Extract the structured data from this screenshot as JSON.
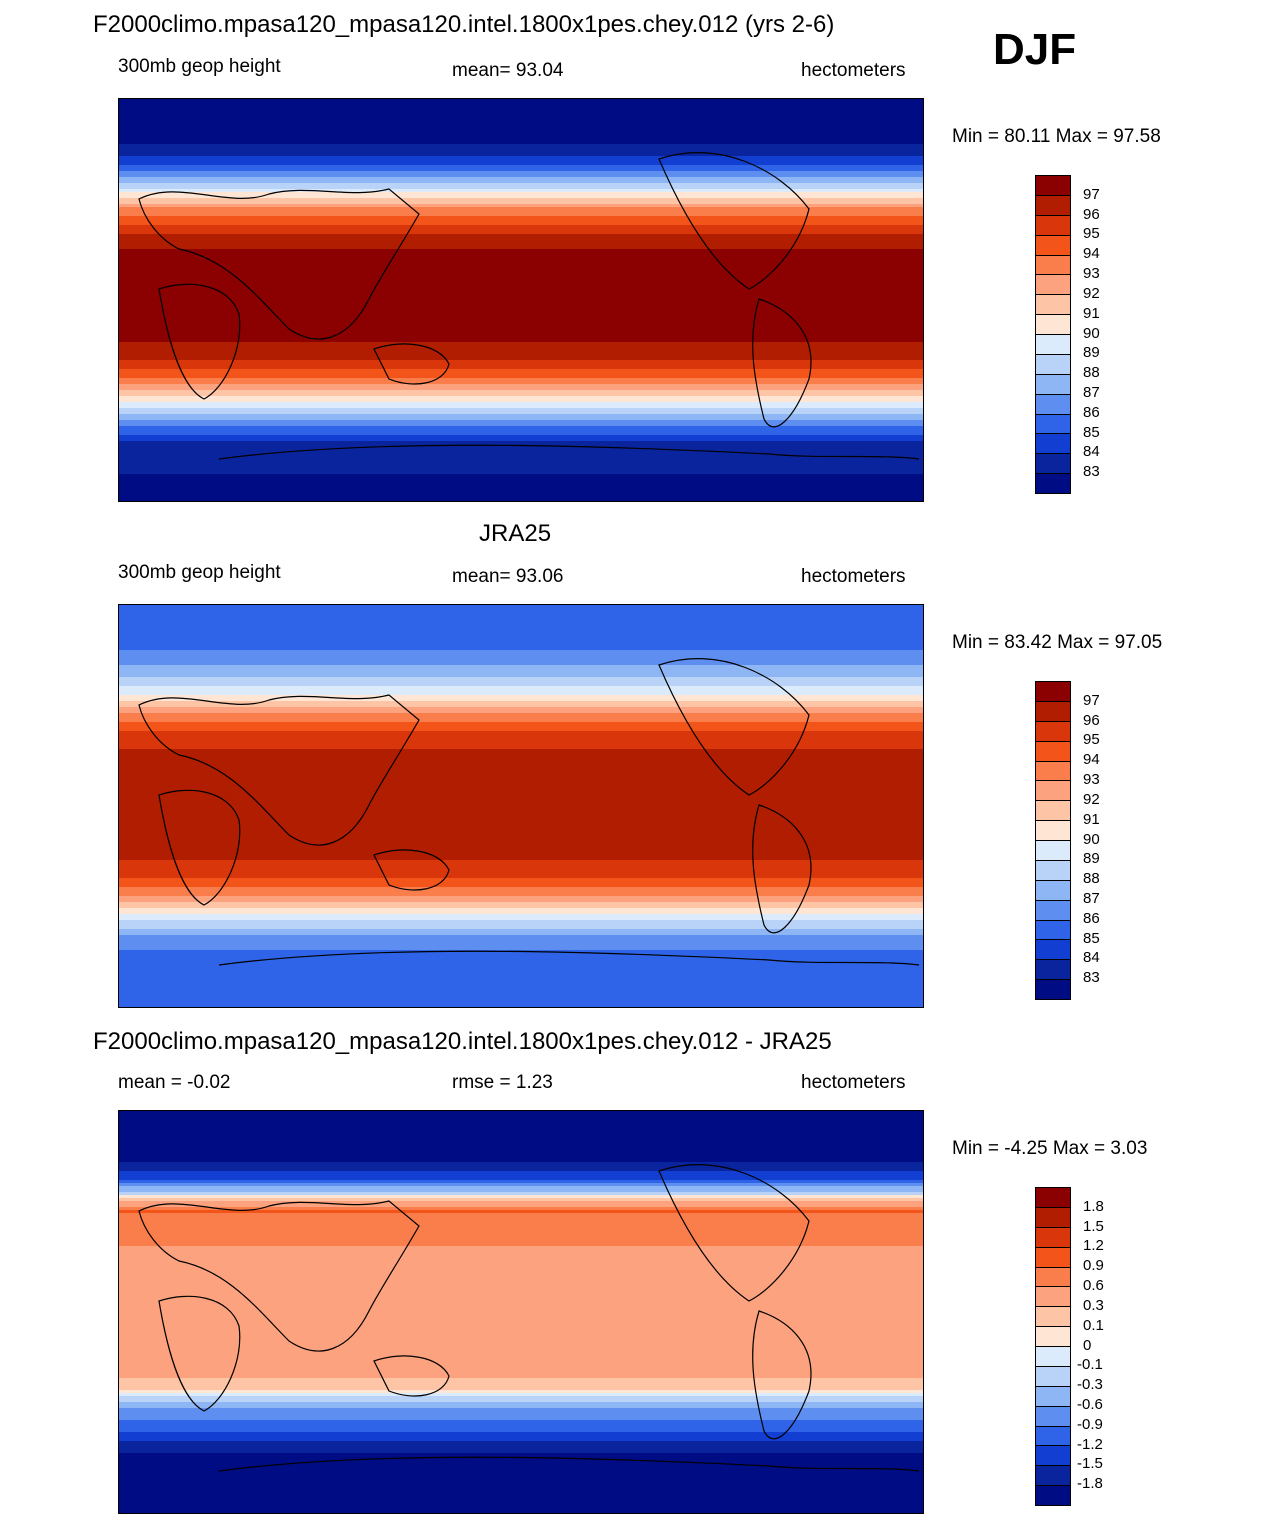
{
  "figure": {
    "season": "DJF"
  },
  "panels": [
    {
      "title": "F2000climo.mpasa120_mpasa120.intel.1800x1pes.chey.012 (yrs 2-6)",
      "left_label": "300mb geop height",
      "center_label": "mean=  93.04",
      "right_label": "hectometers",
      "minmax": "Min =  80.11 Max =  97.58"
    },
    {
      "title": "JRA25",
      "left_label": "300mb geop height",
      "center_label": "mean=  93.06",
      "right_label": "hectometers",
      "minmax": "Min =  83.42 Max =  97.05"
    },
    {
      "title": "F2000climo.mpasa120_mpasa120.intel.1800x1pes.chey.012 - JRA25",
      "left_label": "mean =  -0.02",
      "center_label": "rmse =   1.23",
      "right_label": "hectometers",
      "minmax": "Min =  -4.25 Max =   3.03"
    }
  ],
  "chart_data": [
    {
      "type": "heatmap",
      "title": "F2000climo.mpasa120_mpasa120.intel.1800x1pes.chey.012 (yrs 2-6)",
      "variable": "300mb geop height",
      "units": "hectometers",
      "mean": 93.04,
      "min": 80.11,
      "max": 97.58,
      "contour_levels": [
        97,
        96,
        95,
        94,
        93,
        92,
        91,
        90,
        89,
        88,
        87,
        86,
        85,
        84,
        83
      ],
      "colors": [
        "#8b0000",
        "#b11d00",
        "#d9360b",
        "#f2541a",
        "#f97e4c",
        "#fca27e",
        "#fdc4a6",
        "#fee5d4",
        "#dcebfb",
        "#b9d3f8",
        "#8fb6f4",
        "#5d8ef0",
        "#2f64e8",
        "#123fd1",
        "#0a249e",
        "#000c84"
      ],
      "lat_profile": [
        {
          "lat": 90,
          "value": 82
        },
        {
          "lat": 70,
          "value": 83
        },
        {
          "lat": 62,
          "value": 84.5
        },
        {
          "lat": 55,
          "value": 87
        },
        {
          "lat": 48,
          "value": 90
        },
        {
          "lat": 40,
          "value": 93.5
        },
        {
          "lat": 30,
          "value": 96
        },
        {
          "lat": 20,
          "value": 97.3
        },
        {
          "lat": 0,
          "value": 97.5
        },
        {
          "lat": -15,
          "value": 97.3
        },
        {
          "lat": -25,
          "value": 96.5
        },
        {
          "lat": -35,
          "value": 94
        },
        {
          "lat": -45,
          "value": 90.5
        },
        {
          "lat": -55,
          "value": 86.5
        },
        {
          "lat": -65,
          "value": 83.5
        },
        {
          "lat": -90,
          "value": 82.5
        }
      ]
    },
    {
      "type": "heatmap",
      "title": "JRA25",
      "variable": "300mb geop height",
      "units": "hectometers",
      "mean": 93.06,
      "min": 83.42,
      "max": 97.05,
      "contour_levels": [
        97,
        96,
        95,
        94,
        93,
        92,
        91,
        90,
        89,
        88,
        87,
        86,
        85,
        84,
        83
      ],
      "colors": [
        "#8b0000",
        "#b11d00",
        "#d9360b",
        "#f2541a",
        "#f97e4c",
        "#fca27e",
        "#fdc4a6",
        "#fee5d4",
        "#dcebfb",
        "#b9d3f8",
        "#8fb6f4",
        "#5d8ef0",
        "#2f64e8",
        "#123fd1",
        "#0a249e",
        "#000c84"
      ],
      "lat_profile": [
        {
          "lat": 90,
          "value": 85.5
        },
        {
          "lat": 70,
          "value": 86
        },
        {
          "lat": 60,
          "value": 87.5
        },
        {
          "lat": 50,
          "value": 90
        },
        {
          "lat": 40,
          "value": 93.5
        },
        {
          "lat": 30,
          "value": 95.8
        },
        {
          "lat": 15,
          "value": 96.5
        },
        {
          "lat": 0,
          "value": 96.6
        },
        {
          "lat": -20,
          "value": 96.4
        },
        {
          "lat": -30,
          "value": 95.5
        },
        {
          "lat": -40,
          "value": 93
        },
        {
          "lat": -50,
          "value": 89.5
        },
        {
          "lat": -60,
          "value": 86.5
        },
        {
          "lat": -70,
          "value": 85.5
        },
        {
          "lat": -90,
          "value": 85.2
        }
      ]
    },
    {
      "type": "heatmap",
      "title": "F2000climo.mpasa120_mpasa120.intel.1800x1pes.chey.012 - JRA25",
      "units": "hectometers",
      "mean": -0.02,
      "rmse": 1.23,
      "min": -4.25,
      "max": 3.03,
      "contour_levels": [
        1.8,
        1.5,
        1.2,
        0.9,
        0.6,
        0.3,
        0.1,
        0,
        -0.1,
        -0.3,
        -0.6,
        -0.9,
        -1.2,
        -1.5,
        -1.8
      ],
      "colors": [
        "#8b0000",
        "#b11d00",
        "#d9360b",
        "#f2541a",
        "#f97e4c",
        "#fca27e",
        "#fdc4a6",
        "#fee5d4",
        "#dcebfb",
        "#b9d3f8",
        "#8fb6f4",
        "#5d8ef0",
        "#2f64e8",
        "#123fd1",
        "#0a249e",
        "#000c84"
      ],
      "lat_profile": [
        {
          "lat": 90,
          "value": -2.2
        },
        {
          "lat": 70,
          "value": -2
        },
        {
          "lat": 60,
          "value": -1.3
        },
        {
          "lat": 53,
          "value": -0.1
        },
        {
          "lat": 45,
          "value": 0.9
        },
        {
          "lat": 35,
          "value": 0.7
        },
        {
          "lat": 20,
          "value": 0.45
        },
        {
          "lat": 0,
          "value": 0.45
        },
        {
          "lat": -15,
          "value": 0.5
        },
        {
          "lat": -25,
          "value": 0.45
        },
        {
          "lat": -35,
          "value": 0.1
        },
        {
          "lat": -42,
          "value": -0.5
        },
        {
          "lat": -55,
          "value": -1.3
        },
        {
          "lat": -65,
          "value": -1.9
        },
        {
          "lat": -90,
          "value": -2.1
        }
      ]
    }
  ]
}
